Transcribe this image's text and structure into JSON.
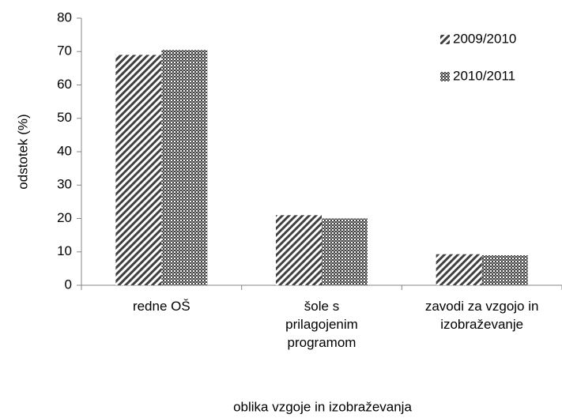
{
  "chart_data": {
    "type": "bar",
    "categories": [
      "redne OŠ",
      "šole s prilagojenim programom",
      "zavodi za vzgojo in izobraževanje"
    ],
    "series": [
      {
        "name": "2009/2010",
        "color": "#404040",
        "pattern": "diagonal",
        "values": [
          69,
          21,
          9.3
        ]
      },
      {
        "name": "2010/2011",
        "color": "#404040",
        "pattern": "checker",
        "values": [
          70.5,
          20,
          9
        ]
      }
    ],
    "xlabel": "oblika vzgoje in izobraževanja",
    "ylabel": "odstotek (%)",
    "ylim": [
      0,
      80
    ],
    "yticks": [
      0,
      10,
      20,
      30,
      40,
      50,
      60,
      70,
      80
    ],
    "grid": false,
    "legend": "upper right"
  }
}
